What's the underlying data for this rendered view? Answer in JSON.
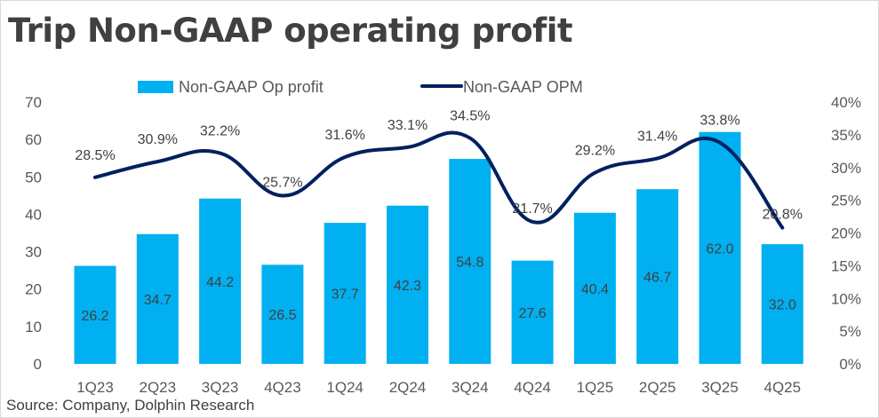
{
  "title": "Trip Non-GAAP operating profit",
  "source": "Source: Company, Dolphin Research",
  "chart_data": {
    "type": "bar+line",
    "title": "Trip Non-GAAP operating profit",
    "categories": [
      "1Q23",
      "2Q23",
      "3Q23",
      "4Q23",
      "1Q24",
      "2Q24",
      "3Q24",
      "4Q24",
      "1Q25",
      "2Q25",
      "3Q25",
      "4Q25"
    ],
    "series": [
      {
        "name": "Non-GAAP Op profit",
        "type": "bar",
        "axis": "left",
        "color": "#00b0f0",
        "values": [
          26.2,
          34.7,
          44.2,
          26.5,
          37.7,
          42.3,
          54.8,
          27.6,
          40.4,
          46.7,
          62.0,
          32.0
        ],
        "labels": [
          "26.2",
          "34.7",
          "44.2",
          "26.5",
          "37.7",
          "42.3",
          "54.8",
          "27.6",
          "40.4",
          "46.7",
          "62.0",
          "32.0"
        ]
      },
      {
        "name": "Non-GAAP OPM",
        "type": "line",
        "axis": "right",
        "color": "#002060",
        "values": [
          28.5,
          30.9,
          32.2,
          25.7,
          31.6,
          33.1,
          34.5,
          21.7,
          29.2,
          31.4,
          33.8,
          20.8
        ],
        "labels": [
          "28.5%",
          "30.9%",
          "32.2%",
          "25.7%",
          "31.6%",
          "33.1%",
          "34.5%",
          "21.7%",
          "29.2%",
          "31.4%",
          "33.8%",
          "20.8%"
        ]
      }
    ],
    "y_left": {
      "range": [
        0,
        70
      ],
      "ticks": [
        "0",
        "10",
        "20",
        "30",
        "40",
        "50",
        "60",
        "70"
      ]
    },
    "y_right": {
      "range": [
        0,
        40
      ],
      "ticks": [
        "0%",
        "5%",
        "10%",
        "15%",
        "20%",
        "25%",
        "30%",
        "35%",
        "40%"
      ]
    },
    "legend_placement": "top",
    "grid": false
  }
}
